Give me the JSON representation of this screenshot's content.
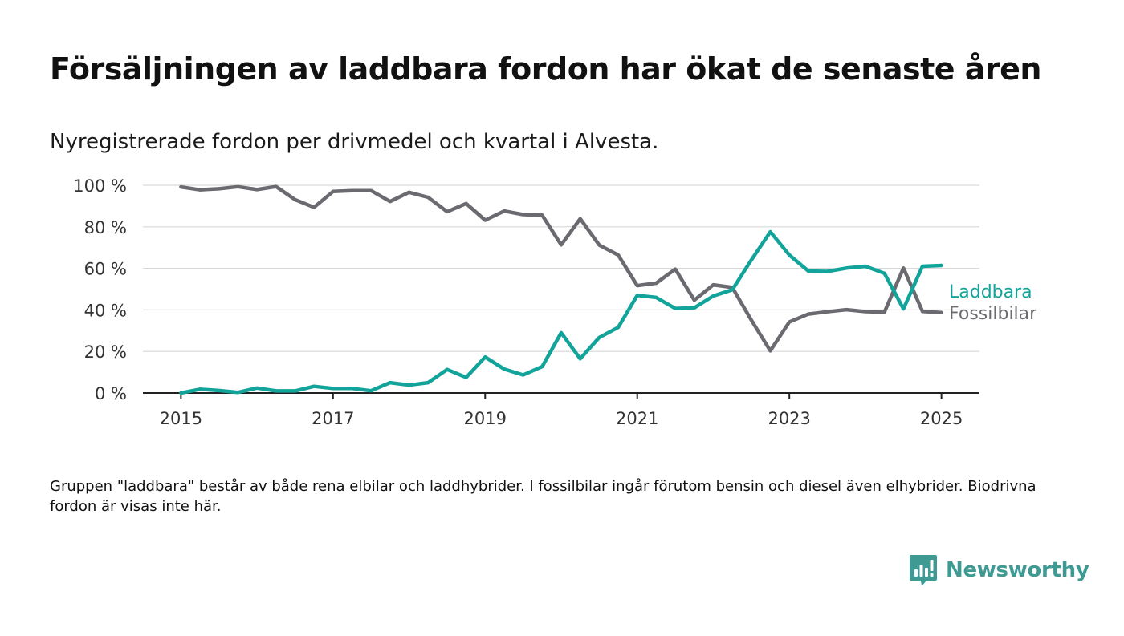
{
  "header": {
    "title": "Försäljningen av laddbara fordon har ökat de senaste åren",
    "subtitle": "Nyregistrerade fordon per drivmedel och kvartal i Alvesta."
  },
  "footnote": "Gruppen \"laddbara\" består av både rena elbilar och laddhybrider. I fossilbilar ingår förutom bensin och diesel även elhybrider. Biodrivna fordon är visas inte här.",
  "brand": {
    "name": "Newsworthy",
    "icon": "newsworthy-logo-icon",
    "color": "#3f9a93"
  },
  "chart_data": {
    "type": "line",
    "x": [
      2015.0,
      2015.25,
      2015.5,
      2015.75,
      2016.0,
      2016.25,
      2016.5,
      2016.75,
      2017.0,
      2017.25,
      2017.5,
      2017.75,
      2018.0,
      2018.25,
      2018.5,
      2018.75,
      2019.0,
      2019.25,
      2019.5,
      2019.75,
      2020.0,
      2020.25,
      2020.5,
      2020.75,
      2021.0,
      2021.25,
      2021.5,
      2021.75,
      2022.0,
      2022.25,
      2022.5,
      2022.75,
      2023.0,
      2023.25,
      2023.5,
      2023.75,
      2024.0,
      2024.25,
      2024.5,
      2024.75,
      2025.0
    ],
    "xlim": [
      2014.5,
      2025.5
    ],
    "xticks": [
      2015,
      2017,
      2019,
      2021,
      2023,
      2025
    ],
    "xtick_labels": [
      "2015",
      "2017",
      "2019",
      "2021",
      "2023",
      "2025"
    ],
    "ylim": [
      0,
      100
    ],
    "yticks": [
      0,
      20,
      40,
      60,
      80,
      100
    ],
    "ytick_labels": [
      "0 %",
      "20 %",
      "40 %",
      "60 %",
      "80 %",
      "100 %"
    ],
    "grid": true,
    "series": [
      {
        "name": "Laddbara",
        "color": "#12a39a",
        "values": [
          0,
          1.8,
          1.2,
          0.3,
          2.4,
          1.0,
          1.0,
          3.2,
          2.2,
          2.2,
          1.1,
          5.0,
          3.8,
          5.0,
          11.3,
          7.5,
          17.3,
          11.5,
          8.7,
          12.7,
          29.0,
          16.5,
          26.7,
          31.6,
          47.0,
          46.0,
          40.7,
          41.0,
          46.7,
          49.7,
          64.0,
          77.6,
          66.4,
          58.7,
          58.5,
          60.1,
          61.0,
          57.6,
          40.5,
          61.0,
          61.4
        ]
      },
      {
        "name": "Fossilbilar",
        "color": "#6b6a70",
        "values": [
          99.2,
          97.8,
          98.3,
          99.3,
          97.9,
          99.4,
          93.1,
          89.4,
          97.0,
          97.4,
          97.4,
          92.2,
          96.6,
          94.2,
          87.3,
          91.2,
          83.2,
          87.6,
          85.9,
          85.6,
          71.3,
          83.9,
          71.2,
          66.4,
          51.7,
          52.9,
          59.6,
          44.7,
          52.1,
          50.8,
          35.1,
          20.3,
          34.2,
          38.0,
          39.1,
          40.1,
          39.2,
          38.9,
          60.1,
          39.3,
          38.7
        ]
      }
    ]
  }
}
